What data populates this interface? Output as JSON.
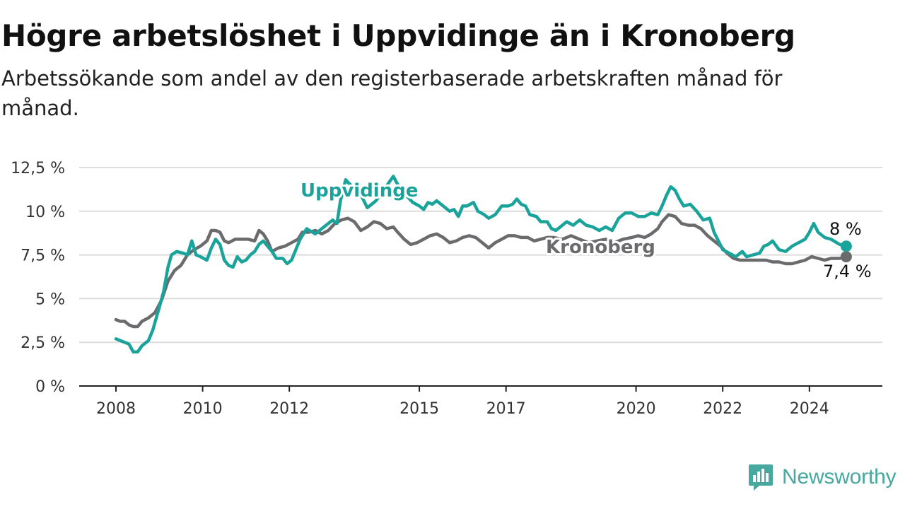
{
  "title": "Högre arbetslöshet i Uppvidinge än i Kronoberg",
  "subtitle": "Arbetssökande som andel av den registerbaserade arbetskraften månad för månad.",
  "brand": {
    "name": "Newsworthy",
    "color": "#47a8a0"
  },
  "chart_data": {
    "type": "line",
    "title": "Högre arbetslöshet i Uppvidinge än i Kronoberg",
    "subtitle": "Arbetssökande som andel av den registerbaserade arbetskraften månad för månad.",
    "xlabel": "",
    "ylabel": "",
    "x_range": [
      2008,
      2025
    ],
    "ylim": [
      0,
      12.5
    ],
    "y_ticks": [
      0,
      2.5,
      5,
      7.5,
      10,
      12.5
    ],
    "y_tick_labels": [
      "0 %",
      "2,5 %",
      "5 %",
      "7,5 %",
      "10 %",
      "12,5 %"
    ],
    "x_ticks": [
      2008,
      2010,
      2012,
      2015,
      2017,
      2020,
      2022,
      2024
    ],
    "x_tick_labels": [
      "2008",
      "2010",
      "2012",
      "2015",
      "2017",
      "2020",
      "2022",
      "2024"
    ],
    "grid": true,
    "legend": "direct labels on lines",
    "series": [
      {
        "name": "Uppvidinge",
        "color": "#1aa39a",
        "end_label": "8 %",
        "points": [
          [
            2008.0,
            2.7
          ],
          [
            2008.15,
            2.55
          ],
          [
            2008.3,
            2.4
          ],
          [
            2008.4,
            1.95
          ],
          [
            2008.5,
            1.95
          ],
          [
            2008.6,
            2.3
          ],
          [
            2008.75,
            2.6
          ],
          [
            2008.85,
            3.2
          ],
          [
            2009.0,
            4.5
          ],
          [
            2009.1,
            5.4
          ],
          [
            2009.2,
            6.8
          ],
          [
            2009.28,
            7.5
          ],
          [
            2009.4,
            7.7
          ],
          [
            2009.55,
            7.6
          ],
          [
            2009.65,
            7.5
          ],
          [
            2009.75,
            8.3
          ],
          [
            2009.85,
            7.5
          ],
          [
            2009.95,
            7.4
          ],
          [
            2010.1,
            7.2
          ],
          [
            2010.2,
            7.9
          ],
          [
            2010.3,
            8.4
          ],
          [
            2010.4,
            8.1
          ],
          [
            2010.5,
            7.2
          ],
          [
            2010.6,
            6.9
          ],
          [
            2010.7,
            6.8
          ],
          [
            2010.8,
            7.4
          ],
          [
            2010.9,
            7.1
          ],
          [
            2011.0,
            7.2
          ],
          [
            2011.1,
            7.5
          ],
          [
            2011.2,
            7.7
          ],
          [
            2011.3,
            8.1
          ],
          [
            2011.4,
            8.3
          ],
          [
            2011.5,
            8.0
          ],
          [
            2011.6,
            7.7
          ],
          [
            2011.7,
            7.3
          ],
          [
            2011.85,
            7.3
          ],
          [
            2011.95,
            7.0
          ],
          [
            2012.05,
            7.2
          ],
          [
            2012.15,
            7.8
          ],
          [
            2012.25,
            8.4
          ],
          [
            2012.4,
            9.0
          ],
          [
            2012.6,
            8.7
          ],
          [
            2012.8,
            9.1
          ],
          [
            2013.0,
            9.5
          ],
          [
            2013.1,
            9.3
          ],
          [
            2013.18,
            10.6
          ],
          [
            2013.3,
            11.8
          ],
          [
            2013.45,
            11.4
          ],
          [
            2013.6,
            11.2
          ],
          [
            2013.8,
            10.2
          ],
          [
            2014.0,
            10.6
          ],
          [
            2014.2,
            11.3
          ],
          [
            2014.4,
            12.0
          ],
          [
            2014.55,
            11.3
          ],
          [
            2014.7,
            10.9
          ],
          [
            2014.85,
            10.5
          ],
          [
            2015.0,
            10.3
          ],
          [
            2015.1,
            10.1
          ],
          [
            2015.2,
            10.5
          ],
          [
            2015.3,
            10.4
          ],
          [
            2015.4,
            10.6
          ],
          [
            2015.55,
            10.3
          ],
          [
            2015.7,
            10.0
          ],
          [
            2015.8,
            10.1
          ],
          [
            2015.9,
            9.7
          ],
          [
            2016.0,
            10.3
          ],
          [
            2016.1,
            10.3
          ],
          [
            2016.25,
            10.5
          ],
          [
            2016.35,
            10.0
          ],
          [
            2016.5,
            9.8
          ],
          [
            2016.6,
            9.6
          ],
          [
            2016.75,
            9.8
          ],
          [
            2016.9,
            10.3
          ],
          [
            2017.05,
            10.3
          ],
          [
            2017.15,
            10.4
          ],
          [
            2017.25,
            10.7
          ],
          [
            2017.35,
            10.4
          ],
          [
            2017.45,
            10.3
          ],
          [
            2017.55,
            9.8
          ],
          [
            2017.7,
            9.7
          ],
          [
            2017.8,
            9.4
          ],
          [
            2017.95,
            9.4
          ],
          [
            2018.05,
            9.0
          ],
          [
            2018.15,
            8.9
          ],
          [
            2018.3,
            9.2
          ],
          [
            2018.4,
            9.4
          ],
          [
            2018.55,
            9.2
          ],
          [
            2018.7,
            9.5
          ],
          [
            2018.85,
            9.2
          ],
          [
            2019.0,
            9.1
          ],
          [
            2019.15,
            8.9
          ],
          [
            2019.3,
            9.1
          ],
          [
            2019.45,
            8.9
          ],
          [
            2019.6,
            9.6
          ],
          [
            2019.75,
            9.9
          ],
          [
            2019.9,
            9.9
          ],
          [
            2020.05,
            9.7
          ],
          [
            2020.2,
            9.7
          ],
          [
            2020.35,
            9.9
          ],
          [
            2020.5,
            9.8
          ],
          [
            2020.6,
            10.3
          ],
          [
            2020.7,
            10.9
          ],
          [
            2020.8,
            11.4
          ],
          [
            2020.9,
            11.2
          ],
          [
            2021.0,
            10.7
          ],
          [
            2021.1,
            10.3
          ],
          [
            2021.25,
            10.4
          ],
          [
            2021.4,
            10.0
          ],
          [
            2021.55,
            9.5
          ],
          [
            2021.7,
            9.6
          ],
          [
            2021.8,
            8.8
          ],
          [
            2021.9,
            8.3
          ],
          [
            2022.0,
            7.8
          ],
          [
            2022.15,
            7.6
          ],
          [
            2022.3,
            7.4
          ],
          [
            2022.45,
            7.7
          ],
          [
            2022.55,
            7.4
          ],
          [
            2022.7,
            7.5
          ],
          [
            2022.85,
            7.6
          ],
          [
            2022.95,
            8.0
          ],
          [
            2023.05,
            8.1
          ],
          [
            2023.15,
            8.3
          ],
          [
            2023.3,
            7.8
          ],
          [
            2023.45,
            7.7
          ],
          [
            2023.6,
            8.0
          ],
          [
            2023.75,
            8.2
          ],
          [
            2023.9,
            8.4
          ],
          [
            2024.0,
            8.8
          ],
          [
            2024.1,
            9.3
          ],
          [
            2024.2,
            8.8
          ],
          [
            2024.35,
            8.5
          ],
          [
            2024.5,
            8.4
          ],
          [
            2024.7,
            8.1
          ],
          [
            2024.85,
            8.0
          ]
        ]
      },
      {
        "name": "Kronoberg",
        "color": "#6b6b6e",
        "end_label": "7,4 %",
        "points": [
          [
            2008.0,
            3.8
          ],
          [
            2008.1,
            3.7
          ],
          [
            2008.2,
            3.7
          ],
          [
            2008.3,
            3.5
          ],
          [
            2008.4,
            3.4
          ],
          [
            2008.5,
            3.4
          ],
          [
            2008.6,
            3.7
          ],
          [
            2008.75,
            3.9
          ],
          [
            2008.9,
            4.2
          ],
          [
            2009.05,
            4.9
          ],
          [
            2009.2,
            6.0
          ],
          [
            2009.35,
            6.6
          ],
          [
            2009.5,
            6.9
          ],
          [
            2009.65,
            7.5
          ],
          [
            2009.8,
            7.8
          ],
          [
            2009.95,
            8.0
          ],
          [
            2010.1,
            8.3
          ],
          [
            2010.2,
            8.9
          ],
          [
            2010.3,
            8.9
          ],
          [
            2010.4,
            8.8
          ],
          [
            2010.5,
            8.3
          ],
          [
            2010.6,
            8.2
          ],
          [
            2010.75,
            8.4
          ],
          [
            2010.9,
            8.4
          ],
          [
            2011.05,
            8.4
          ],
          [
            2011.2,
            8.3
          ],
          [
            2011.3,
            8.9
          ],
          [
            2011.4,
            8.7
          ],
          [
            2011.5,
            8.3
          ],
          [
            2011.6,
            7.7
          ],
          [
            2011.75,
            7.9
          ],
          [
            2011.9,
            8.0
          ],
          [
            2012.05,
            8.2
          ],
          [
            2012.2,
            8.4
          ],
          [
            2012.3,
            8.8
          ],
          [
            2012.45,
            8.8
          ],
          [
            2012.6,
            8.9
          ],
          [
            2012.75,
            8.7
          ],
          [
            2012.9,
            8.9
          ],
          [
            2013.05,
            9.3
          ],
          [
            2013.2,
            9.5
          ],
          [
            2013.35,
            9.6
          ],
          [
            2013.5,
            9.4
          ],
          [
            2013.65,
            8.9
          ],
          [
            2013.8,
            9.1
          ],
          [
            2013.95,
            9.4
          ],
          [
            2014.1,
            9.3
          ],
          [
            2014.25,
            9.0
          ],
          [
            2014.4,
            9.1
          ],
          [
            2014.5,
            8.8
          ],
          [
            2014.65,
            8.4
          ],
          [
            2014.8,
            8.1
          ],
          [
            2014.95,
            8.2
          ],
          [
            2015.1,
            8.4
          ],
          [
            2015.25,
            8.6
          ],
          [
            2015.4,
            8.7
          ],
          [
            2015.55,
            8.5
          ],
          [
            2015.7,
            8.2
          ],
          [
            2015.85,
            8.3
          ],
          [
            2016.0,
            8.5
          ],
          [
            2016.15,
            8.6
          ],
          [
            2016.3,
            8.5
          ],
          [
            2016.45,
            8.2
          ],
          [
            2016.6,
            7.9
          ],
          [
            2016.75,
            8.2
          ],
          [
            2016.9,
            8.4
          ],
          [
            2017.05,
            8.6
          ],
          [
            2017.2,
            8.6
          ],
          [
            2017.35,
            8.5
          ],
          [
            2017.5,
            8.5
          ],
          [
            2017.65,
            8.3
          ],
          [
            2017.8,
            8.4
          ],
          [
            2017.95,
            8.5
          ],
          [
            2018.1,
            8.5
          ],
          [
            2018.3,
            8.4
          ],
          [
            2018.5,
            8.6
          ],
          [
            2018.7,
            8.4
          ],
          [
            2018.9,
            8.2
          ],
          [
            2019.1,
            8.3
          ],
          [
            2019.3,
            8.4
          ],
          [
            2019.5,
            8.2
          ],
          [
            2019.7,
            8.4
          ],
          [
            2019.9,
            8.5
          ],
          [
            2020.05,
            8.6
          ],
          [
            2020.2,
            8.5
          ],
          [
            2020.35,
            8.7
          ],
          [
            2020.5,
            9.0
          ],
          [
            2020.6,
            9.4
          ],
          [
            2020.75,
            9.8
          ],
          [
            2020.9,
            9.7
          ],
          [
            2021.05,
            9.3
          ],
          [
            2021.2,
            9.2
          ],
          [
            2021.35,
            9.2
          ],
          [
            2021.5,
            9.0
          ],
          [
            2021.65,
            8.6
          ],
          [
            2021.8,
            8.3
          ],
          [
            2021.95,
            8.0
          ],
          [
            2022.1,
            7.6
          ],
          [
            2022.25,
            7.3
          ],
          [
            2022.4,
            7.2
          ],
          [
            2022.55,
            7.2
          ],
          [
            2022.7,
            7.2
          ],
          [
            2022.85,
            7.2
          ],
          [
            2023.0,
            7.2
          ],
          [
            2023.15,
            7.1
          ],
          [
            2023.3,
            7.1
          ],
          [
            2023.45,
            7.0
          ],
          [
            2023.6,
            7.0
          ],
          [
            2023.75,
            7.1
          ],
          [
            2023.9,
            7.2
          ],
          [
            2024.05,
            7.4
          ],
          [
            2024.2,
            7.3
          ],
          [
            2024.35,
            7.2
          ],
          [
            2024.5,
            7.3
          ],
          [
            2024.7,
            7.3
          ],
          [
            2024.85,
            7.4
          ]
        ]
      }
    ]
  }
}
